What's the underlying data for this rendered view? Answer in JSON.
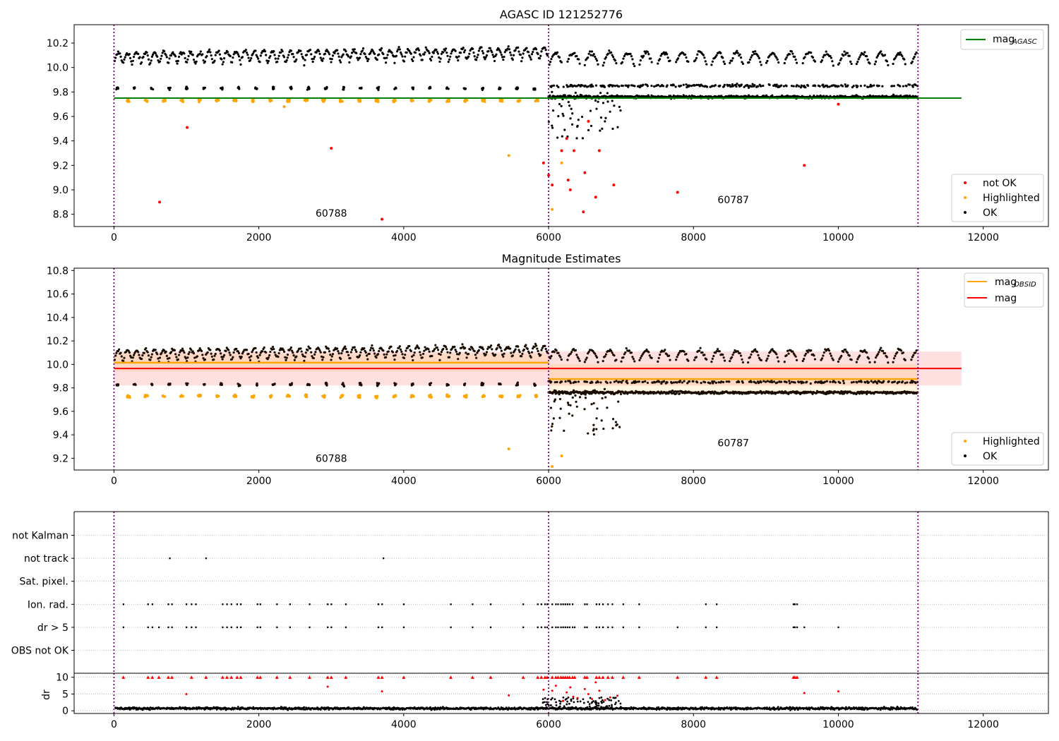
{
  "chart_data": [
    {
      "type": "scatter",
      "title": "AGASC ID 121252776",
      "xlim": [
        -550,
        12900
      ],
      "ylim": [
        8.7,
        10.35
      ],
      "xticks": [
        0,
        2000,
        4000,
        6000,
        8000,
        10000,
        12000
      ],
      "yticks": [
        8.8,
        9.0,
        9.2,
        9.4,
        9.6,
        9.8,
        10.0,
        10.2
      ],
      "grid": false,
      "legend_position": "top-right",
      "legend_top": [
        {
          "label": "mag",
          "sub": "AGASC",
          "color": "#008000"
        }
      ],
      "legend_bottom": [
        {
          "label": "not OK",
          "color": "#ff0000"
        },
        {
          "label": "Highlighted",
          "color": "#ffa500"
        },
        {
          "label": "OK",
          "color": "#000000"
        }
      ],
      "observation_boundaries": [
        0,
        6000,
        11100
      ],
      "obsid_labels": [
        {
          "text": "60788",
          "x": 3000,
          "y": 8.78
        },
        {
          "text": "60787",
          "x": 8550,
          "y": 8.89
        }
      ],
      "lines": [
        {
          "name": "mag_AGASC",
          "y": 9.75,
          "x": [
            0,
            11700
          ],
          "color": "#008000"
        }
      ],
      "series": [
        {
          "name": "OK",
          "color": "#000000",
          "description": "dense oscillating bands 9.95-10.18 across 0-11100; secondary cluster near 9.75-9.85 after 6000; sparse dips to 9.35 near 6000-7000"
        },
        {
          "name": "Highlighted",
          "color": "#ffa500",
          "points": [
            [
              5450,
              9.28
            ],
            [
              6180,
              9.22
            ],
            [
              6050,
              8.84
            ],
            [
              2350,
              9.68
            ]
          ],
          "cluster_y": 9.73,
          "cluster_x_range": [
            150,
            6000
          ]
        },
        {
          "name": "not OK",
          "color": "#ff0000",
          "points": [
            [
              630,
              8.9
            ],
            [
              1010,
              9.51
            ],
            [
              3000,
              9.34
            ],
            [
              3700,
              8.76
            ],
            [
              5930,
              9.22
            ],
            [
              6000,
              9.12
            ],
            [
              6050,
              9.04
            ],
            [
              6180,
              9.32
            ],
            [
              6250,
              9.42
            ],
            [
              6270,
              9.08
            ],
            [
              6300,
              9.0
            ],
            [
              6350,
              9.32
            ],
            [
              6480,
              8.82
            ],
            [
              6500,
              9.14
            ],
            [
              6550,
              9.56
            ],
            [
              6650,
              8.94
            ],
            [
              6700,
              9.32
            ],
            [
              6900,
              9.04
            ],
            [
              7780,
              8.98
            ],
            [
              9530,
              9.2
            ],
            [
              10000,
              9.7
            ]
          ]
        }
      ]
    },
    {
      "type": "scatter",
      "title": "Magnitude Estimates",
      "xlim": [
        -550,
        12900
      ],
      "ylim": [
        9.1,
        10.82
      ],
      "xticks": [
        0,
        2000,
        4000,
        6000,
        8000,
        10000,
        12000
      ],
      "yticks": [
        9.2,
        9.4,
        9.6,
        9.8,
        10.0,
        10.2,
        10.4,
        10.6,
        10.8
      ],
      "grid": false,
      "legend_position": "top-right",
      "legend_top": [
        {
          "label": "mag",
          "sub": "OBSID",
          "color": "#ffa500"
        },
        {
          "label": "mag",
          "sub": "",
          "color": "#ff0000"
        }
      ],
      "legend_bottom": [
        {
          "label": "Highlighted",
          "color": "#ffa500"
        },
        {
          "label": "OK",
          "color": "#000000"
        }
      ],
      "observation_boundaries": [
        0,
        6000,
        11100
      ],
      "obsid_labels": [
        {
          "text": "60788",
          "x": 3000,
          "y": 9.17
        },
        {
          "text": "60787",
          "x": 8550,
          "y": 9.3
        }
      ],
      "lines": [
        {
          "name": "mag",
          "y": 9.965,
          "x": [
            0,
            11700
          ],
          "color": "#ff0000",
          "band": [
            9.82,
            10.11
          ]
        },
        {
          "name": "mag_OBSID 60788",
          "y": 10.015,
          "x": [
            0,
            6000
          ],
          "color": "#ffa500",
          "band": [
            9.94,
            10.09
          ]
        },
        {
          "name": "mag_OBSID 60787",
          "y": 9.875,
          "x": [
            6000,
            11100
          ],
          "color": "#ffa500",
          "band": [
            9.75,
            10.0
          ]
        }
      ],
      "series": [
        {
          "name": "OK",
          "color": "#000000"
        },
        {
          "name": "Highlighted",
          "color": "#ffa500",
          "points": [
            [
              5450,
              9.28
            ],
            [
              6180,
              9.22
            ],
            [
              6050,
              9.13
            ]
          ]
        }
      ]
    },
    {
      "type": "scatter",
      "title": "",
      "xlim": [
        -550,
        12900
      ],
      "categories": [
        "not Kalman",
        "not track",
        "Sat. pixel.",
        "Ion. rad.",
        "dr > 5",
        "OBS not OK"
      ],
      "grid": "horizontal dotted",
      "observation_boundaries": [
        0,
        6000,
        11100
      ],
      "flags": {
        "not track": [
          770,
          1270,
          3720
        ],
        "Ion. rad.": [
          130,
          470,
          530,
          750,
          800,
          1000,
          1070,
          1130,
          1500,
          1560,
          1620,
          1700,
          1750,
          1980,
          2020,
          2250,
          2430,
          2700,
          2950,
          3000,
          3200,
          3650,
          3700,
          4000,
          4650,
          4950,
          5200,
          5650,
          5850,
          5900,
          5950,
          5980,
          6050,
          6100,
          6130,
          6170,
          6200,
          6230,
          6260,
          6290,
          6330,
          6500,
          6530,
          6660,
          6700,
          6750,
          6820,
          6880,
          7030,
          7250,
          8170,
          8320,
          9380,
          9400,
          9430
        ],
        "dr > 5": [
          130,
          470,
          530,
          620,
          750,
          800,
          1000,
          1070,
          1130,
          1500,
          1560,
          1620,
          1700,
          1750,
          1980,
          2020,
          2250,
          2430,
          2700,
          2950,
          3000,
          3200,
          3650,
          3700,
          4000,
          4650,
          4950,
          5200,
          5650,
          5850,
          5900,
          5950,
          5980,
          6050,
          6100,
          6130,
          6170,
          6200,
          6230,
          6260,
          6290,
          6330,
          6360,
          6500,
          6530,
          6660,
          6700,
          6750,
          6820,
          6880,
          7030,
          7250,
          7780,
          8170,
          8320,
          9380,
          9400,
          9430,
          9530,
          10000
        ]
      }
    },
    {
      "type": "scatter",
      "title": "",
      "ylabel": "dr",
      "xlim": [
        -550,
        12900
      ],
      "ylim": [
        -0.8,
        11.2
      ],
      "xticks": [
        0,
        2000,
        4000,
        6000,
        8000,
        10000,
        12000
      ],
      "yticks": [
        0,
        5,
        10
      ],
      "grid": "horizontal dotted",
      "observation_boundaries": [
        0,
        6000,
        11100
      ],
      "series": [
        {
          "name": "OK",
          "color": "#000000",
          "description": "dense band 0-1.5 from 0 to 11100, with scatter up to 4 near 6000-7000"
        },
        {
          "name": "not OK",
          "color": "#ff0000",
          "clipped_marker": "triangle at 10",
          "clipped_x": [
            130,
            470,
            530,
            620,
            750,
            800,
            1070,
            1270,
            1500,
            1560,
            1620,
            1700,
            1750,
            1980,
            2020,
            2250,
            2430,
            2700,
            2950,
            3000,
            3200,
            3650,
            3700,
            4000,
            4650,
            4950,
            5200,
            5650,
            5850,
            5900,
            5950,
            5980,
            6050,
            6100,
            6130,
            6170,
            6200,
            6230,
            6260,
            6290,
            6330,
            6360,
            6500,
            6530,
            6660,
            6700,
            6750,
            6820,
            6880,
            7030,
            7250,
            7780,
            8170,
            8320,
            9380,
            9400,
            9430
          ],
          "points": [
            [
              1000,
              5.0
            ],
            [
              2950,
              7.2
            ],
            [
              3700,
              5.8
            ],
            [
              5450,
              4.6
            ],
            [
              5930,
              6.3
            ],
            [
              6050,
              6.0
            ],
            [
              6100,
              7.5
            ],
            [
              6200,
              3.0
            ],
            [
              6250,
              5.5
            ],
            [
              6300,
              7.0
            ],
            [
              6340,
              4.2
            ],
            [
              6400,
              3.8
            ],
            [
              6500,
              6.5
            ],
            [
              6550,
              5.0
            ],
            [
              6600,
              3.5
            ],
            [
              6650,
              8.5
            ],
            [
              6700,
              6.0
            ],
            [
              6780,
              3.2
            ],
            [
              6850,
              4.0
            ],
            [
              6950,
              4.5
            ],
            [
              9530,
              5.3
            ],
            [
              10000,
              5.8
            ]
          ]
        }
      ]
    }
  ]
}
